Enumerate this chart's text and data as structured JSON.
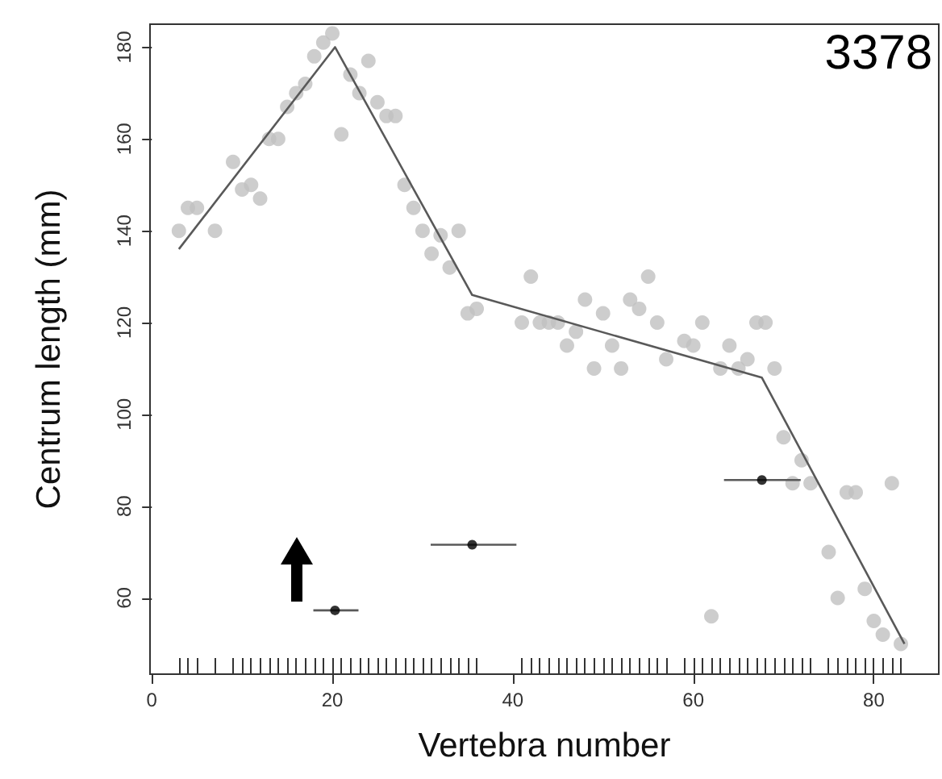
{
  "chart_data": {
    "type": "scatter",
    "xlabel": "Vertebra number",
    "ylabel": "Centrum length (mm)",
    "annotations": [
      "3378"
    ],
    "xlim": [
      -0.2,
      87.2
    ],
    "ylim": [
      43.4,
      185
    ],
    "xticks": [
      0,
      20,
      40,
      60,
      80
    ],
    "yticks": [
      60,
      80,
      100,
      120,
      140,
      160,
      180
    ],
    "grid": false,
    "marker": "circle",
    "series": [
      {
        "color": "#c0c0c0",
        "x": [
          3,
          4,
          5,
          7,
          9,
          10,
          11,
          12,
          13,
          14,
          15,
          16,
          17,
          18,
          19,
          20,
          21,
          22,
          23,
          24,
          25,
          26,
          27,
          28,
          29,
          30,
          31,
          32,
          33,
          34,
          35,
          36,
          41,
          42,
          43,
          44,
          45,
          46,
          47,
          48,
          49,
          50,
          51,
          52,
          53,
          54,
          55,
          56,
          57,
          59,
          60,
          61,
          62,
          63,
          64,
          65,
          66,
          67,
          68,
          69,
          70,
          71,
          72,
          73,
          75,
          76,
          77,
          78,
          79,
          80,
          81,
          82,
          83
        ],
        "values": [
          140,
          145,
          145,
          140,
          155,
          149,
          150,
          147,
          160,
          160,
          167,
          170,
          172,
          178,
          181,
          183,
          161,
          174,
          170,
          177,
          168,
          165,
          165,
          150,
          145,
          140,
          135,
          139,
          132,
          140,
          122,
          123,
          120,
          130,
          120,
          120,
          120,
          115,
          118,
          125,
          110,
          122,
          115,
          110,
          125,
          123,
          130,
          120,
          112,
          116,
          115,
          120,
          56,
          110,
          115,
          110,
          112,
          120,
          120,
          110,
          95,
          85,
          90,
          85,
          70,
          60,
          83,
          83,
          62,
          55,
          52,
          85,
          50
        ]
      },
      {
        "type": "line",
        "color": "#595959",
        "marker": "none",
        "x": [
          3,
          20.3,
          35.5,
          67.6,
          83.4
        ],
        "values": [
          136,
          180,
          126,
          108,
          50
        ]
      },
      {
        "color": "#000000",
        "x": [
          20.3,
          35.5,
          67.6
        ],
        "values": [
          57.3,
          71.6,
          85.7
        ],
        "xerrors": [
          [
            17.9,
            22.9
          ],
          [
            30.9,
            40.4
          ],
          [
            63.4,
            71.9
          ]
        ]
      }
    ]
  }
}
